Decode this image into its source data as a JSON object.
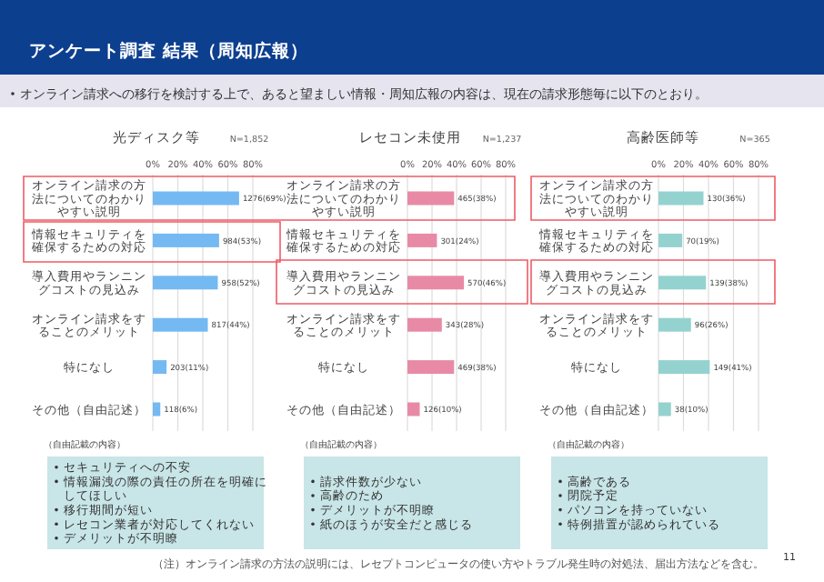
{
  "chart_data": [
    {
      "type": "bar",
      "orientation": "horizontal",
      "title": "光ディスク等",
      "subtitle": "N=1,852",
      "categories": [
        "オンライン請求の方法についてのわかりやすい説明",
        "情報セキュリティを確保するための対応",
        "導入費用やランニングコストの見込み",
        "オンライン請求をすることのメリット",
        "特になし",
        "その他（自由記述）"
      ],
      "values": [
        69,
        53,
        52,
        44,
        11,
        6
      ],
      "value_labels": [
        "1276(69%)",
        "984(53%)",
        "958(52%)",
        "817(44%)",
        "203(11%)",
        "118(6%)"
      ],
      "color": "#74b9f2",
      "xlim": [
        0,
        80
      ],
      "xticks": [
        {
          "value": 0,
          "label": "0%"
        },
        {
          "value": 20,
          "label": "20%"
        },
        {
          "value": 40,
          "label": "40%"
        },
        {
          "value": 60,
          "label": "60%"
        },
        {
          "value": 80,
          "label": "80%"
        }
      ],
      "grid": "x",
      "annotations": [
        "（自由記載の内容）",
        "セキュリティへの不安",
        "情報漏洩の際の責任の所在を明確にしてほしい",
        "移行期間が短い",
        "レセコン業者が対応してくれない",
        "デメリットが不明瞭"
      ]
    },
    {
      "type": "bar",
      "orientation": "horizontal",
      "title": "レセコン未使用",
      "subtitle": "N=1,237",
      "categories": [
        "オンライン請求の方法についてのわかりやすい説明",
        "情報セキュリティを確保するための対応",
        "導入費用やランニングコストの見込み",
        "オンライン請求をすることのメリット",
        "特になし",
        "その他（自由記述）"
      ],
      "values": [
        38,
        24,
        46,
        28,
        38,
        10
      ],
      "value_labels": [
        "465(38%)",
        "301(24%)",
        "570(46%)",
        "343(28%)",
        "469(38%)",
        "126(10%)"
      ],
      "color": "#e88aa6",
      "xlim": [
        0,
        80
      ],
      "xticks": [
        {
          "value": 0,
          "label": "0%"
        },
        {
          "value": 20,
          "label": "20%"
        },
        {
          "value": 40,
          "label": "40%"
        },
        {
          "value": 60,
          "label": "60%"
        },
        {
          "value": 80,
          "label": "80%"
        }
      ],
      "grid": "x",
      "annotations": [
        "（自由記載の内容）",
        "請求件数が少ない",
        "高齢のため",
        "デメリットが不明瞭",
        "紙のほうが安全だと感じる"
      ]
    },
    {
      "type": "bar",
      "orientation": "horizontal",
      "title": "高齢医師等",
      "subtitle": "N=365",
      "categories": [
        "オンライン請求の方法についてのわかりやすい説明",
        "情報セキュリティを確保するための対応",
        "導入費用やランニングコストの見込み",
        "オンライン請求をすることのメリット",
        "特になし",
        "その他（自由記述）"
      ],
      "values": [
        36,
        19,
        38,
        26,
        41,
        10
      ],
      "value_labels": [
        "130(36%)",
        "70(19%)",
        "139(38%)",
        "96(26%)",
        "149(41%)",
        "38(10%)"
      ],
      "color": "#94d2cf",
      "xlim": [
        0,
        80
      ],
      "xticks": [
        {
          "value": 0,
          "label": "0%"
        },
        {
          "value": 20,
          "label": "20%"
        },
        {
          "value": 40,
          "label": "40%"
        },
        {
          "value": 60,
          "label": "60%"
        },
        {
          "value": 80,
          "label": "80%"
        }
      ],
      "grid": "x",
      "annotations": [
        "（自由記載の内容）",
        "高齢である",
        "閉院予定",
        "パソコンを持っていない",
        "特例措置が認められている"
      ]
    },
    {
      "type": "other",
      "title": "アンケート調査 結果（周知広報）",
      "subtitle": "オンライン請求への移行を検討する上で、あると望ましい情報・周知広報の内容は、現在の請求形態毎に以下のとおり。",
      "annotations": [
        "（注）オンライン請求の方法の説明には、レセプトコンピュータの使い方やトラブル発生時の対処法、届出方法などを含む。",
        "11"
      ]
    }
  ]
}
